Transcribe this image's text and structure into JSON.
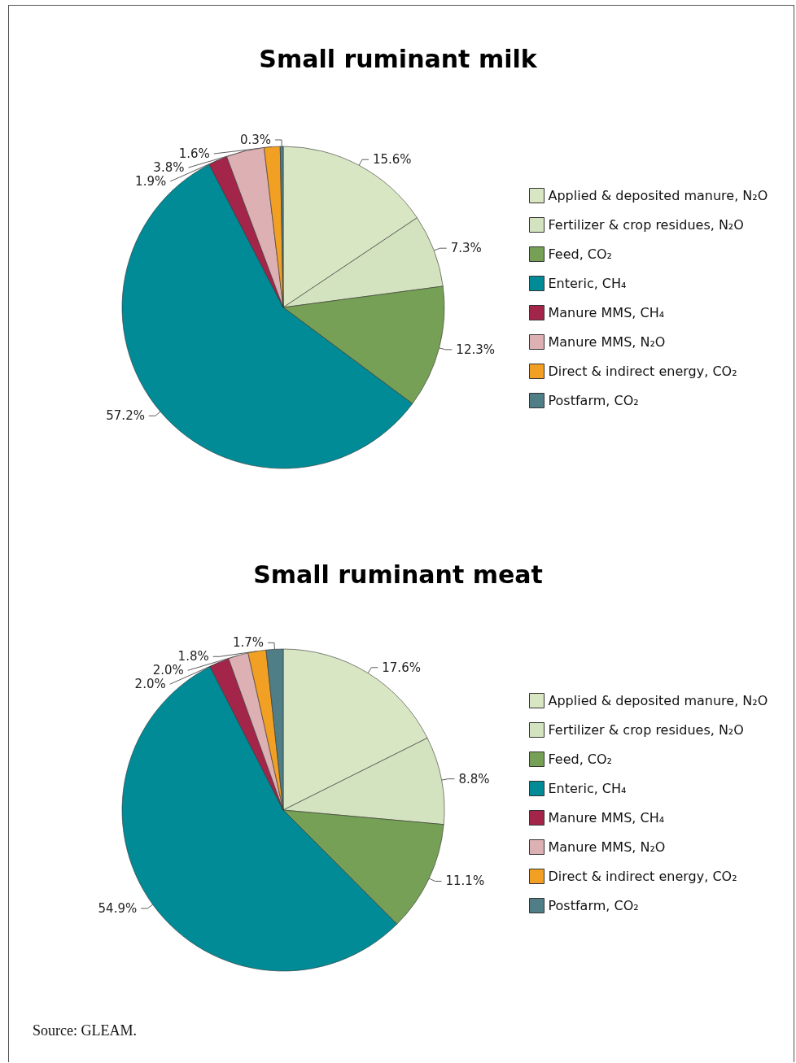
{
  "chart_data": [
    {
      "type": "pie",
      "title": "Small ruminant milk",
      "categories": [
        "Applied & deposited manure, N₂O",
        "Fertilizer & crop residues, N₂O",
        "Feed, CO₂",
        "Enteric, CH₄",
        "Manure MMS, CH₄",
        "Manure MMS, N₂O",
        "Direct & indirect energy, CO₂",
        "Postfarm, CO₂"
      ],
      "values": [
        15.6,
        7.3,
        12.3,
        57.2,
        1.9,
        3.8,
        1.6,
        0.3
      ],
      "colors": [
        "#d8e6c4",
        "#d4e3bf",
        "#76a055",
        "#008b97",
        "#a3264a",
        "#ddb1b3",
        "#f1a024",
        "#4f7e87"
      ],
      "value_labels": [
        "15.6%",
        "7.3%",
        "12.3%",
        "57.2%",
        "1.9%",
        "3.8%",
        "1.6%",
        "0.3%"
      ],
      "legend": "right"
    },
    {
      "type": "pie",
      "title": "Small ruminant meat",
      "categories": [
        "Applied & deposited manure, N₂O",
        "Fertilizer & crop residues, N₂O",
        "Feed, CO₂",
        "Enteric, CH₄",
        "Manure MMS, CH₄",
        "Manure MMS, N₂O",
        "Direct & indirect energy, CO₂",
        "Postfarm, CO₂"
      ],
      "values": [
        17.6,
        8.8,
        11.1,
        54.9,
        2.0,
        2.0,
        1.8,
        1.7
      ],
      "colors": [
        "#d8e6c4",
        "#d4e3bf",
        "#76a055",
        "#008b97",
        "#a3264a",
        "#ddb1b3",
        "#f1a024",
        "#4f7e87"
      ],
      "value_labels": [
        "17.6%",
        "8.8%",
        "11.1%",
        "54.9%",
        "2.0%",
        "2.0%",
        "1.8%",
        "1.7%"
      ],
      "legend": "right",
      "annotations": [
        "Source: GLEAM."
      ]
    }
  ]
}
